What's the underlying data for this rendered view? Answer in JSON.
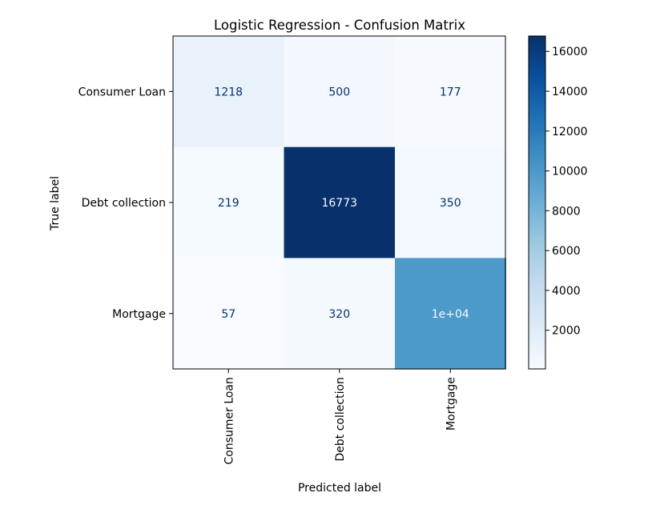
{
  "chart_data": {
    "type": "heatmap",
    "title": "Logistic Regression - Confusion Matrix",
    "xlabel": "Predicted label",
    "ylabel": "True label",
    "x_categories": [
      "Consumer Loan",
      "Debt collection",
      "Mortgage"
    ],
    "y_categories": [
      "Consumer Loan",
      "Debt collection",
      "Mortgage"
    ],
    "values": [
      [
        1218,
        500,
        177
      ],
      [
        219,
        16773,
        350
      ],
      [
        57,
        320,
        10000
      ]
    ],
    "cell_labels": [
      [
        "1218",
        "500",
        "177"
      ],
      [
        "219",
        "16773",
        "350"
      ],
      [
        "57",
        "320",
        "1e+04"
      ]
    ],
    "colormap": "Blues",
    "colorbar": {
      "ticks": [
        2000,
        4000,
        6000,
        8000,
        10000,
        12000,
        14000,
        16000
      ],
      "tick_labels": [
        "2000",
        "4000",
        "6000",
        "8000",
        "10000",
        "12000",
        "14000",
        "16000"
      ]
    },
    "grid": false
  }
}
